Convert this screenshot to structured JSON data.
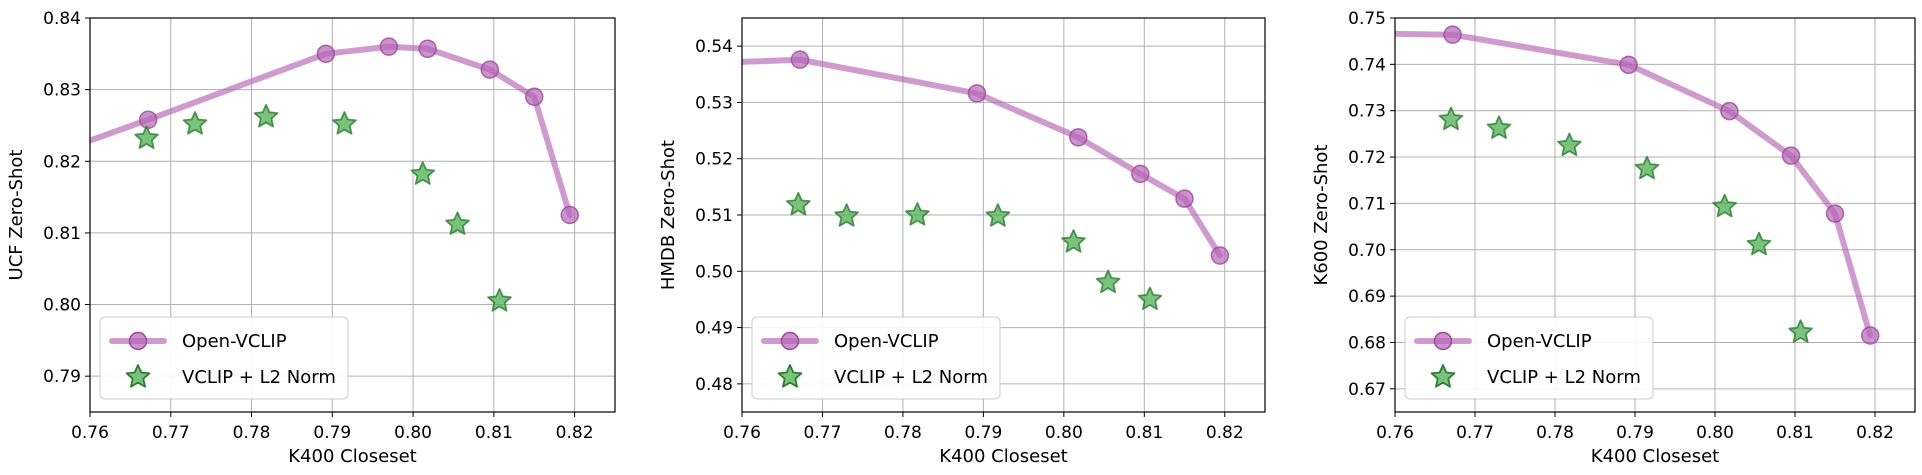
{
  "chart_data": [
    {
      "type": "scatter",
      "xlabel": "K400 Closeset",
      "ylabel": "UCF Zero-Shot",
      "xlim": [
        0.76,
        0.825
      ],
      "ylim": [
        0.785,
        0.84
      ],
      "xticks": [
        "0.76",
        "0.77",
        "0.78",
        "0.79",
        "0.80",
        "0.81",
        "0.82"
      ],
      "yticks": [
        "0.79",
        "0.80",
        "0.81",
        "0.82",
        "0.83",
        "0.84"
      ],
      "grid": true,
      "legend": "lower-left",
      "series": [
        {
          "name": "Open-VCLIP",
          "marker": "circle",
          "line": true,
          "color": "#b565b5",
          "x": [
            0.7672,
            0.7892,
            0.797,
            0.8018,
            0.8095,
            0.815,
            0.8194
          ],
          "y": [
            0.8258,
            0.835,
            0.836,
            0.8357,
            0.8328,
            0.829,
            0.8125
          ],
          "line_start": {
            "x": 0.76,
            "y": 0.8229
          }
        },
        {
          "name": "VCLIP + L2 Norm",
          "marker": "star",
          "line": false,
          "color": "#4caf50",
          "x": [
            0.767,
            0.773,
            0.7818,
            0.7915,
            0.8012,
            0.8055,
            0.8107
          ],
          "y": [
            0.8232,
            0.8252,
            0.8262,
            0.8252,
            0.8182,
            0.8112,
            0.8005
          ]
        }
      ]
    },
    {
      "type": "scatter",
      "xlabel": "K400 Closeset",
      "ylabel": "HMDB Zero-Shot",
      "xlim": [
        0.76,
        0.825
      ],
      "ylim": [
        0.475,
        0.545
      ],
      "xticks": [
        "0.76",
        "0.77",
        "0.78",
        "0.79",
        "0.80",
        "0.81",
        "0.82"
      ],
      "yticks": [
        "0.48",
        "0.49",
        "0.50",
        "0.51",
        "0.52",
        "0.53",
        "0.54"
      ],
      "grid": true,
      "legend": "lower-left",
      "series": [
        {
          "name": "Open-VCLIP",
          "marker": "circle",
          "line": true,
          "color": "#b565b5",
          "x": [
            0.7672,
            0.7892,
            0.8018,
            0.8095,
            0.815,
            0.8194
          ],
          "y": [
            0.5376,
            0.5316,
            0.5238,
            0.5173,
            0.5129,
            0.5028
          ],
          "line_start": {
            "x": 0.76,
            "y": 0.5372
          }
        },
        {
          "name": "VCLIP + L2 Norm",
          "marker": "star",
          "line": false,
          "color": "#4caf50",
          "x": [
            0.767,
            0.773,
            0.7818,
            0.7918,
            0.8012,
            0.8055,
            0.8107
          ],
          "y": [
            0.5118,
            0.5098,
            0.51,
            0.5098,
            0.5052,
            0.498,
            0.495
          ]
        }
      ]
    },
    {
      "type": "scatter",
      "xlabel": "K400 Closeset",
      "ylabel": "K600 Zero-Shot",
      "xlim": [
        0.76,
        0.825
      ],
      "ylim": [
        0.665,
        0.75
      ],
      "xticks": [
        "0.76",
        "0.77",
        "0.78",
        "0.79",
        "0.80",
        "0.81",
        "0.82"
      ],
      "yticks": [
        "0.67",
        "0.68",
        "0.69",
        "0.70",
        "0.71",
        "0.72",
        "0.73",
        "0.74",
        "0.75"
      ],
      "grid": true,
      "legend": "lower-left",
      "series": [
        {
          "name": "Open-VCLIP",
          "marker": "circle",
          "line": true,
          "color": "#b565b5",
          "x": [
            0.7672,
            0.7892,
            0.8018,
            0.8095,
            0.815,
            0.8194
          ],
          "y": [
            0.7464,
            0.7399,
            0.7299,
            0.7203,
            0.7078,
            0.6815
          ],
          "line_start": {
            "x": 0.76,
            "y": 0.7466
          }
        },
        {
          "name": "VCLIP + L2 Norm",
          "marker": "star",
          "line": false,
          "color": "#4caf50",
          "x": [
            0.767,
            0.773,
            0.7818,
            0.7915,
            0.8012,
            0.8055,
            0.8107
          ],
          "y": [
            0.7281,
            0.7262,
            0.7225,
            0.7175,
            0.7093,
            0.7011,
            0.6822
          ]
        }
      ]
    }
  ]
}
